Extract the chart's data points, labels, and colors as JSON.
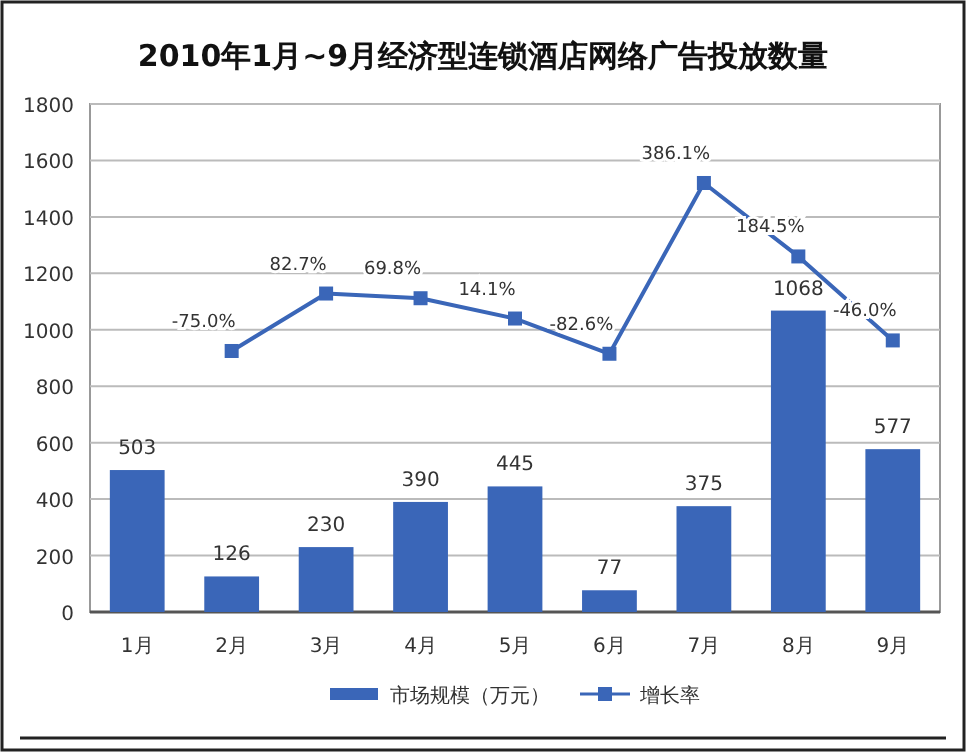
{
  "chart_data": {
    "type": "bar",
    "title": "2010年1月~9月经济型连锁酒店网络广告投放数量",
    "categories": [
      "1月",
      "2月",
      "3月",
      "4月",
      "5月",
      "6月",
      "7月",
      "8月",
      "9月"
    ],
    "series": [
      {
        "name": "市场规模（万元）",
        "color": "#3a66b8",
        "values": [
          503,
          126,
          230,
          390,
          445,
          77,
          375,
          1068,
          577
        ]
      },
      {
        "name": "增长率",
        "type": "line",
        "axis": "y2",
        "color": "#3a66b8",
        "marker": "square",
        "values": [
          null,
          -75.0,
          82.7,
          69.8,
          14.1,
          -82.6,
          386.1,
          184.5,
          -46.0
        ],
        "value_labels": [
          null,
          "-75.0%",
          "82.7%",
          "69.8%",
          "14.1%",
          "-82.6%",
          "386.1%",
          "184.5%",
          "-46.0%"
        ]
      }
    ],
    "ylim": [
      0,
      1800
    ],
    "yticks": [
      0,
      200,
      400,
      600,
      800,
      1000,
      1200,
      1400,
      1600,
      1800
    ],
    "y2lim": [
      -791.4,
      602.9
    ],
    "data_labels": true,
    "grid": "y",
    "legend": "bottom"
  }
}
